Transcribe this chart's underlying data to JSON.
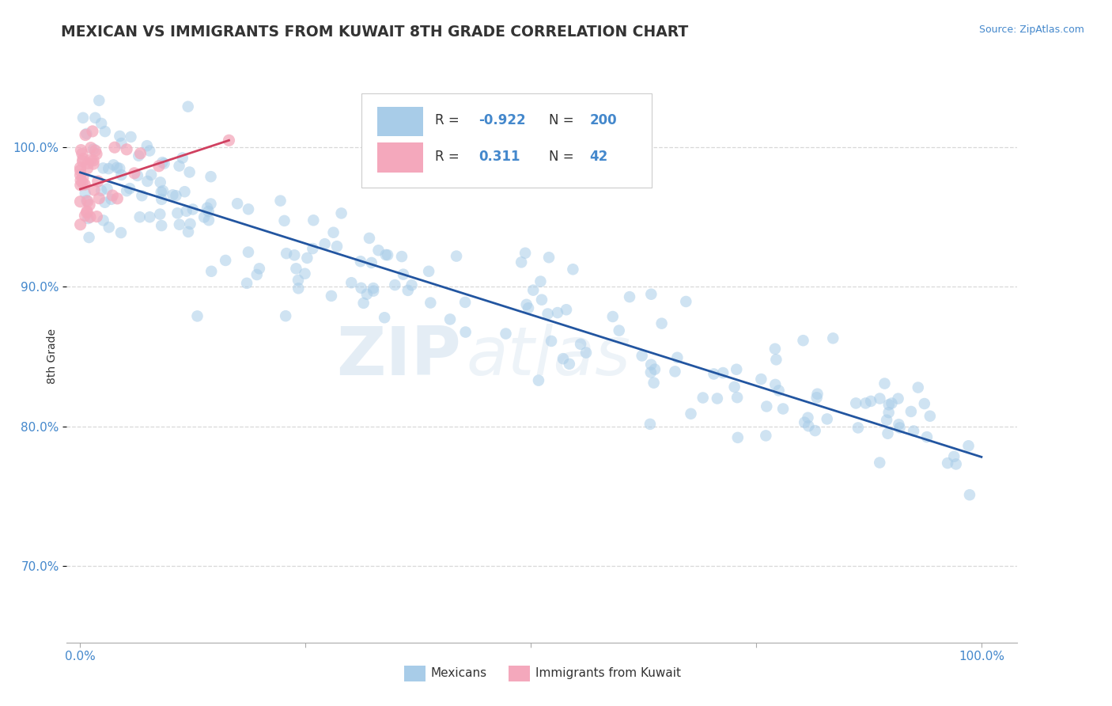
{
  "title": "MEXICAN VS IMMIGRANTS FROM KUWAIT 8TH GRADE CORRELATION CHART",
  "source_text": "Source: ZipAtlas.com",
  "ylabel": "8th Grade",
  "watermark_zip": "ZIP",
  "watermark_atlas": "atlas",
  "blue_r_label": "R =",
  "blue_r_val": "-0.922",
  "blue_n_label": "N =",
  "blue_n_val": "200",
  "pink_r_label": "R =",
  "pink_r_val": "0.311",
  "pink_n_label": "N =",
  "pink_n_val": "42",
  "legend_bottom_blue": "Mexicans",
  "legend_bottom_pink": "Immigrants from Kuwait",
  "blue_trendline_y0": 0.982,
  "blue_trendline_y1": 0.778,
  "pink_trendline_x0": 0.0,
  "pink_trendline_y0": 0.97,
  "pink_trendline_x1": 0.165,
  "pink_trendline_y1": 1.005,
  "yticks": [
    0.7,
    0.8,
    0.9,
    1.0
  ],
  "ytick_labels": [
    "70.0%",
    "80.0%",
    "90.0%",
    "100.0%"
  ],
  "xlim": [
    -0.015,
    1.04
  ],
  "ylim": [
    0.645,
    1.055
  ],
  "blue_color": "#a8cce8",
  "pink_color": "#f4a8bc",
  "trendline_blue": "#2255a0",
  "trendline_pink": "#d04060",
  "grid_color": "#c8c8c8",
  "axis_color": "#4488cc",
  "title_color": "#333333",
  "source_color": "#4488cc",
  "background_color": "#ffffff",
  "blue_scatter_seed": 42,
  "pink_scatter_seed": 7
}
